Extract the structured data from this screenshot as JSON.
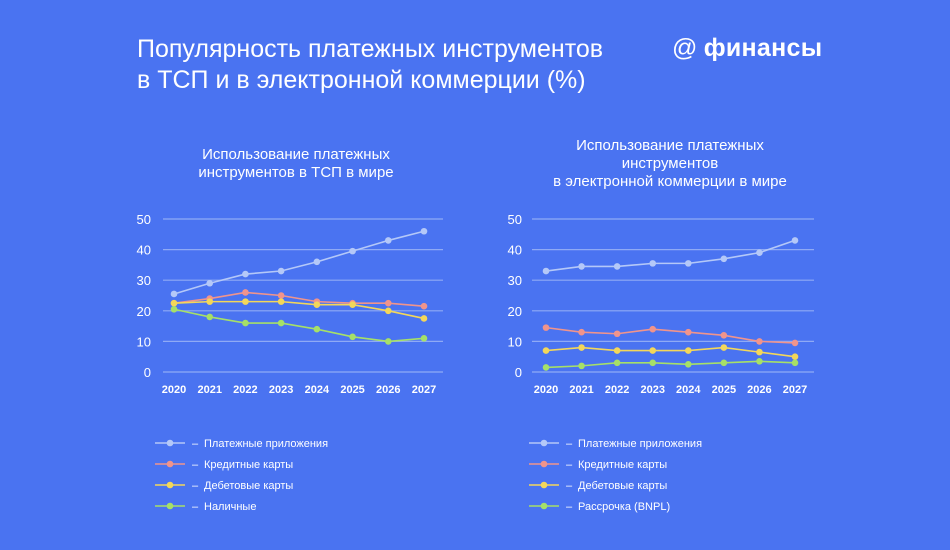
{
  "header": {
    "title_line1": "Популярность платежных инструментов",
    "title_line2": "в ТСП и в электронной коммерции (%)",
    "brand_symbol": "@",
    "brand_name": "финансы"
  },
  "colors": {
    "background": "#4a73f1",
    "grid": "#8faaf5",
    "series": [
      "#b4c8f8",
      "#f0948c",
      "#f3d75a",
      "#a6e068"
    ]
  },
  "chart_data": [
    {
      "type": "line",
      "title_lines": [
        "Использование платежных",
        "инструментов в ТСП в мире"
      ],
      "x": [
        2020,
        2021,
        2022,
        2023,
        2024,
        2025,
        2026,
        2027
      ],
      "ylim": [
        0,
        50
      ],
      "yticks": [
        0,
        10,
        20,
        30,
        40,
        50
      ],
      "grid": true,
      "legend_position": "bottom",
      "series": [
        {
          "name": "Платежные приложения",
          "values": [
            25.5,
            29,
            32,
            33,
            36,
            39.5,
            43,
            46
          ]
        },
        {
          "name": "Кредитные карты",
          "values": [
            22.5,
            24,
            26,
            25,
            23,
            22.5,
            22.5,
            21.5
          ]
        },
        {
          "name": "Дебетовые карты",
          "values": [
            22.5,
            23,
            23,
            23,
            22,
            22,
            20,
            17.5
          ]
        },
        {
          "name": "Наличные",
          "values": [
            20.5,
            18,
            16,
            16,
            14,
            11.5,
            10,
            11
          ]
        }
      ]
    },
    {
      "type": "line",
      "title_lines": [
        "Использование платежных",
        "инструментов",
        "в электронной коммерции в мире"
      ],
      "x": [
        2020,
        2021,
        2022,
        2023,
        2024,
        2025,
        2026,
        2027
      ],
      "ylim": [
        0,
        50
      ],
      "yticks": [
        0,
        10,
        20,
        30,
        40,
        50
      ],
      "grid": true,
      "legend_position": "bottom",
      "series": [
        {
          "name": "Платежные приложения",
          "values": [
            33,
            34.5,
            34.5,
            35.5,
            35.5,
            37,
            39,
            43
          ]
        },
        {
          "name": "Кредитные карты",
          "values": [
            14.5,
            13,
            12.5,
            14,
            13,
            12,
            10,
            9.5
          ]
        },
        {
          "name": "Дебетовые карты",
          "values": [
            7,
            8,
            7,
            7,
            7,
            8,
            6.5,
            5
          ]
        },
        {
          "name": "Рассрочка (BNPL)",
          "values": [
            1.5,
            2,
            3,
            3,
            2.5,
            3,
            3.5,
            3
          ]
        }
      ]
    }
  ]
}
